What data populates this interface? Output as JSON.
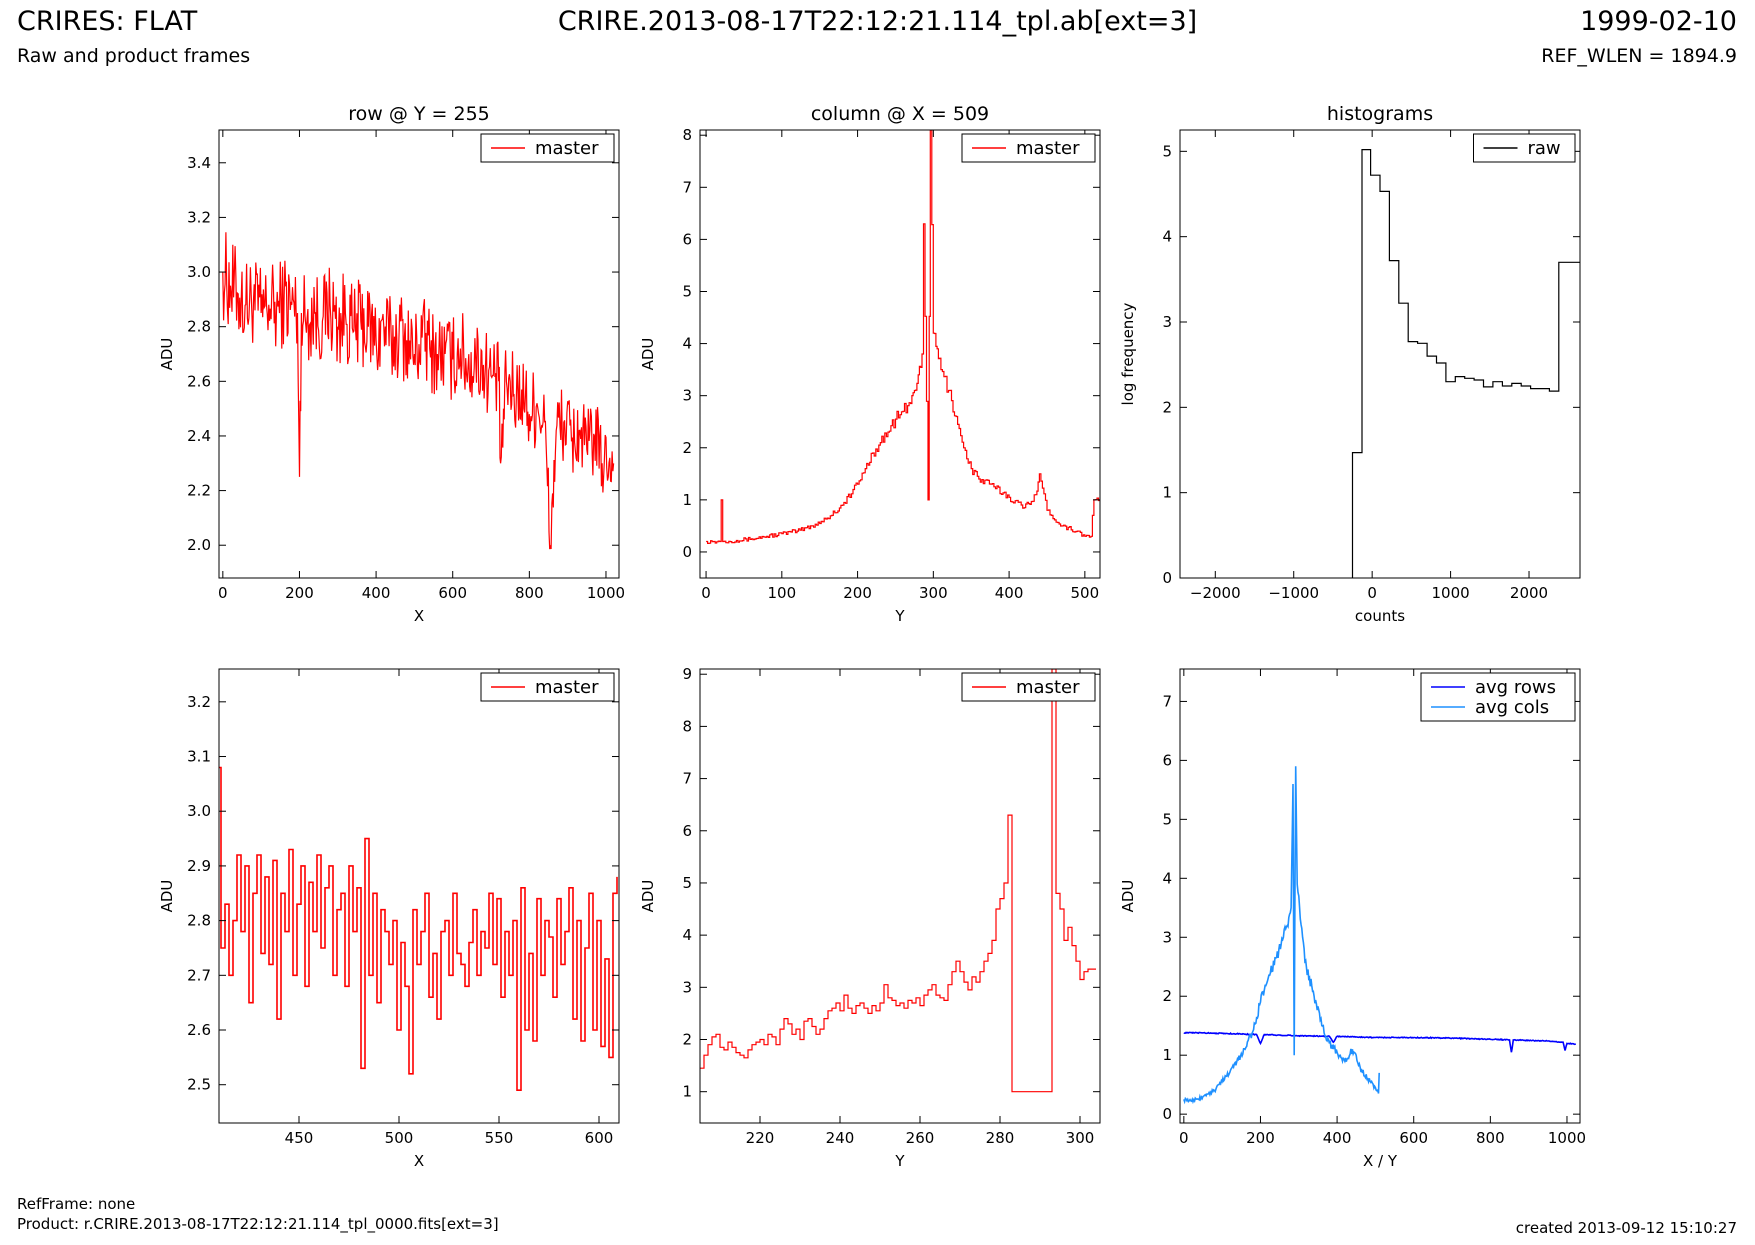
{
  "header": {
    "title": "CRIRES: FLAT",
    "subtitle": "Raw and product frames",
    "filename": "CRIRE.2013-08-17T22:12:21.114_tpl.ab[ext=3]",
    "date": "1999-02-10",
    "ref_wlen": "REF_WLEN = 1894.9"
  },
  "footer": {
    "refframe": "RefFrame: none",
    "product": "Product: r.CRIRE.2013-08-17T22:12:21.114_tpl_0000.fits[ext=3]",
    "created": "created 2013-09-12 15:10:27"
  },
  "colors": {
    "master": "#ff0000",
    "raw": "#000000",
    "avg_rows": "#0000ff",
    "avg_cols": "#1e90ff"
  },
  "chart_data": [
    {
      "id": "row-full",
      "type": "line",
      "title": "row @ Y = 255",
      "xlabel": "X",
      "ylabel": "ADU",
      "xlim": [
        -10,
        1034
      ],
      "ylim": [
        1.88,
        3.52
      ],
      "xticks": [
        0,
        200,
        400,
        600,
        800,
        1000
      ],
      "yticks": [
        2.0,
        2.2,
        2.4,
        2.6,
        2.8,
        3.0,
        3.2,
        3.4
      ],
      "ytick_decimals": 1,
      "legend_loc": "top-right",
      "series": [
        {
          "name": "master",
          "color": "#ff0000",
          "step": false,
          "x": [
            0,
            20,
            40,
            60,
            80,
            100,
            120,
            140,
            160,
            180,
            195,
            200,
            205,
            220,
            240,
            260,
            280,
            300,
            320,
            340,
            360,
            380,
            400,
            420,
            440,
            460,
            480,
            500,
            520,
            540,
            560,
            580,
            600,
            620,
            640,
            660,
            680,
            700,
            720,
            725,
            740,
            760,
            780,
            800,
            820,
            840,
            855,
            870,
            890,
            910,
            930,
            950,
            970,
            990,
            1010,
            1020
          ],
          "y": [
            3.0,
            2.95,
            2.92,
            2.88,
            2.9,
            2.85,
            2.88,
            2.86,
            2.9,
            2.88,
            2.85,
            2.25,
            2.85,
            2.83,
            2.85,
            2.82,
            2.88,
            2.8,
            2.85,
            2.78,
            2.82,
            2.8,
            2.75,
            2.8,
            2.74,
            2.78,
            2.75,
            2.7,
            2.76,
            2.72,
            2.7,
            2.7,
            2.68,
            2.72,
            2.65,
            2.68,
            2.66,
            2.62,
            2.6,
            2.3,
            2.6,
            2.55,
            2.57,
            2.48,
            2.52,
            2.45,
            2.0,
            2.42,
            2.45,
            2.38,
            2.42,
            2.35,
            2.4,
            2.3,
            2.32,
            2.3
          ],
          "noise": 0.13
        }
      ]
    },
    {
      "id": "col-full",
      "type": "line",
      "title": "column @ X = 509",
      "xlabel": "Y",
      "ylabel": "ADU",
      "xlim": [
        -8,
        520
      ],
      "ylim": [
        -0.5,
        8.1
      ],
      "xticks": [
        0,
        100,
        200,
        300,
        400,
        500
      ],
      "yticks": [
        0,
        1,
        2,
        3,
        4,
        5,
        6,
        7,
        8
      ],
      "ytick_decimals": 0,
      "legend_loc": "top-right",
      "series": [
        {
          "name": "master",
          "color": "#ff0000",
          "step": true,
          "x": [
            0,
            10,
            18,
            20,
            22,
            40,
            60,
            80,
            100,
            120,
            140,
            160,
            180,
            200,
            210,
            220,
            230,
            240,
            250,
            260,
            270,
            275,
            280,
            285,
            287,
            293,
            296,
            300,
            305,
            310,
            320,
            330,
            340,
            350,
            360,
            380,
            400,
            420,
            435,
            440,
            450,
            470,
            490,
            500,
            508,
            512,
            520
          ],
          "y": [
            0.2,
            0.2,
            0.2,
            1.0,
            0.2,
            0.22,
            0.25,
            0.3,
            0.35,
            0.4,
            0.5,
            0.65,
            0.9,
            1.3,
            1.6,
            1.9,
            2.1,
            2.3,
            2.55,
            2.7,
            2.85,
            3.1,
            3.4,
            3.8,
            6.3,
            1.0,
            8.1,
            4.2,
            3.9,
            3.5,
            3.1,
            2.6,
            2.0,
            1.6,
            1.4,
            1.25,
            1.05,
            0.85,
            1.1,
            1.5,
            0.8,
            0.5,
            0.4,
            0.3,
            0.3,
            1.0,
            1.0
          ],
          "noise": 0.1
        }
      ]
    },
    {
      "id": "histogram",
      "type": "line",
      "title": "histograms",
      "xlabel": "counts",
      "ylabel": "log frequency",
      "xlim": [
        -2450,
        2650
      ],
      "ylim": [
        0,
        5.25
      ],
      "xticks": [
        -2000,
        -1000,
        0,
        1000,
        2000
      ],
      "yticks": [
        0,
        1,
        2,
        3,
        4,
        5
      ],
      "ytick_decimals": 0,
      "legend_loc": "top-right",
      "series": [
        {
          "name": "raw",
          "color": "#000000",
          "step": true,
          "x": [
            -250,
            -250,
            -130,
            -130,
            -20,
            -20,
            100,
            100,
            220,
            220,
            340,
            340,
            460,
            460,
            580,
            580,
            700,
            700,
            820,
            820,
            940,
            940,
            1060,
            1060,
            1180,
            1180,
            1300,
            1300,
            1420,
            1420,
            1540,
            1540,
            1660,
            1660,
            1780,
            1780,
            1900,
            1900,
            2020,
            2020,
            2140,
            2140,
            2260,
            2260,
            2380,
            2380,
            2500,
            2500,
            2650
          ],
          "y": [
            0,
            1.47,
            1.47,
            5.02,
            5.02,
            4.72,
            4.72,
            4.53,
            4.53,
            3.72,
            3.72,
            3.22,
            3.22,
            2.77,
            2.77,
            2.75,
            2.75,
            2.6,
            2.6,
            2.52,
            2.52,
            2.3,
            2.3,
            2.36,
            2.36,
            2.34,
            2.34,
            2.32,
            2.32,
            2.24,
            2.24,
            2.3,
            2.3,
            2.25,
            2.25,
            2.28,
            2.28,
            2.25,
            2.25,
            2.22,
            2.22,
            2.22,
            2.22,
            2.19,
            2.19,
            3.7,
            3.7,
            3.7,
            3.7
          ],
          "noise": 0
        }
      ]
    },
    {
      "id": "row-zoom",
      "type": "line",
      "title": "",
      "xlabel": "X",
      "ylabel": "ADU",
      "xlim": [
        410,
        610
      ],
      "ylim": [
        2.43,
        3.26
      ],
      "xticks": [
        450,
        500,
        550,
        600
      ],
      "yticks": [
        2.5,
        2.6,
        2.7,
        2.8,
        2.9,
        3.0,
        3.1,
        3.2
      ],
      "ytick_decimals": 1,
      "legend_loc": "top-right",
      "series": [
        {
          "name": "master",
          "color": "#ff0000",
          "step": true,
          "x": [
            410,
            411,
            413,
            415,
            417,
            419,
            421,
            423,
            425,
            427,
            429,
            431,
            433,
            435,
            437,
            439,
            441,
            443,
            445,
            447,
            449,
            451,
            453,
            455,
            457,
            459,
            461,
            463,
            465,
            467,
            469,
            471,
            473,
            475,
            477,
            479,
            481,
            483,
            485,
            487,
            489,
            491,
            493,
            495,
            497,
            499,
            501,
            503,
            505,
            507,
            509,
            511,
            513,
            515,
            517,
            519,
            521,
            523,
            525,
            527,
            529,
            531,
            533,
            535,
            537,
            539,
            541,
            543,
            545,
            547,
            549,
            551,
            553,
            555,
            557,
            559,
            561,
            563,
            565,
            567,
            569,
            571,
            573,
            575,
            577,
            579,
            581,
            583,
            585,
            587,
            589,
            591,
            593,
            595,
            597,
            599,
            601,
            603,
            605,
            607,
            609
          ],
          "y": [
            3.08,
            2.75,
            2.83,
            2.7,
            2.8,
            2.92,
            2.78,
            2.9,
            2.65,
            2.85,
            2.92,
            2.74,
            2.88,
            2.72,
            2.91,
            2.62,
            2.85,
            2.78,
            2.93,
            2.7,
            2.83,
            2.9,
            2.68,
            2.87,
            2.78,
            2.92,
            2.75,
            2.86,
            2.9,
            2.7,
            2.82,
            2.85,
            2.68,
            2.9,
            2.78,
            2.86,
            2.53,
            2.95,
            2.7,
            2.85,
            2.65,
            2.82,
            2.78,
            2.72,
            2.8,
            2.6,
            2.76,
            2.68,
            2.52,
            2.82,
            2.72,
            2.78,
            2.85,
            2.66,
            2.74,
            2.62,
            2.78,
            2.8,
            2.7,
            2.85,
            2.74,
            2.72,
            2.68,
            2.76,
            2.82,
            2.7,
            2.78,
            2.75,
            2.85,
            2.72,
            2.84,
            2.66,
            2.78,
            2.7,
            2.8,
            2.49,
            2.86,
            2.6,
            2.74,
            2.58,
            2.84,
            2.7,
            2.8,
            2.77,
            2.66,
            2.84,
            2.72,
            2.78,
            2.86,
            2.62,
            2.8,
            2.58,
            2.75,
            2.85,
            2.6,
            2.8,
            2.57,
            2.73,
            2.55,
            2.85,
            2.88
          ],
          "noise": 0
        }
      ]
    },
    {
      "id": "col-zoom",
      "type": "line",
      "title": "",
      "xlabel": "Y",
      "ylabel": "ADU",
      "xlim": [
        205,
        305
      ],
      "ylim": [
        0.4,
        9.1
      ],
      "xticks": [
        220,
        240,
        260,
        280,
        300
      ],
      "yticks": [
        1,
        2,
        3,
        4,
        5,
        6,
        7,
        8,
        9
      ],
      "ytick_decimals": 0,
      "legend_loc": "top-right",
      "series": [
        {
          "name": "master",
          "color": "#ff0000",
          "step": true,
          "x": [
            205,
            206,
            207,
            208,
            209,
            210,
            211,
            212,
            213,
            214,
            215,
            216,
            217,
            218,
            219,
            220,
            221,
            222,
            223,
            224,
            225,
            226,
            227,
            228,
            229,
            230,
            231,
            232,
            233,
            234,
            235,
            236,
            237,
            238,
            239,
            240,
            241,
            242,
            243,
            244,
            245,
            246,
            247,
            248,
            249,
            250,
            251,
            252,
            253,
            254,
            255,
            256,
            257,
            258,
            259,
            260,
            261,
            262,
            263,
            264,
            265,
            266,
            267,
            268,
            269,
            270,
            271,
            272,
            273,
            274,
            275,
            276,
            277,
            278,
            279,
            280,
            281,
            282,
            283,
            284,
            285,
            286,
            287,
            288,
            289,
            290,
            291,
            292,
            293,
            294,
            295,
            296,
            297,
            298,
            299,
            300,
            301,
            302,
            303,
            304
          ],
          "y": [
            1.45,
            1.7,
            1.9,
            2.05,
            2.1,
            1.85,
            1.8,
            1.95,
            1.85,
            1.75,
            1.7,
            1.65,
            1.8,
            1.9,
            1.95,
            2.0,
            1.9,
            2.1,
            2.05,
            1.9,
            2.2,
            2.4,
            2.3,
            2.1,
            2.2,
            2.0,
            2.35,
            2.4,
            2.25,
            2.1,
            2.2,
            2.4,
            2.55,
            2.6,
            2.7,
            2.55,
            2.85,
            2.6,
            2.5,
            2.65,
            2.7,
            2.6,
            2.5,
            2.65,
            2.55,
            2.7,
            3.05,
            2.8,
            2.75,
            2.65,
            2.7,
            2.6,
            2.75,
            2.7,
            2.8,
            2.65,
            2.85,
            2.95,
            3.05,
            2.85,
            2.8,
            2.75,
            3.05,
            3.3,
            3.5,
            3.3,
            3.1,
            2.95,
            3.2,
            3.1,
            3.3,
            3.5,
            3.65,
            3.9,
            4.5,
            4.7,
            5.0,
            6.3,
            1.0,
            1.0,
            1.0,
            1.0,
            1.0,
            1.0,
            1.0,
            1.0,
            1.0,
            1.0,
            9.1,
            4.8,
            4.5,
            3.9,
            4.15,
            3.8,
            3.5,
            3.15,
            3.3,
            3.35,
            3.35,
            3.35
          ],
          "noise": 0
        }
      ]
    },
    {
      "id": "averages",
      "type": "line",
      "title": "",
      "xlabel": "X / Y",
      "ylabel": "ADU",
      "xlim": [
        -10,
        1034
      ],
      "ylim": [
        -0.15,
        7.55
      ],
      "xticks": [
        0,
        200,
        400,
        600,
        800,
        1000
      ],
      "yticks": [
        0,
        1,
        2,
        3,
        4,
        5,
        6,
        7
      ],
      "ytick_decimals": 0,
      "legend_loc": "top-right",
      "series": [
        {
          "name": "avg rows",
          "color": "#0000ff",
          "step": false,
          "x": [
            0,
            50,
            100,
            150,
            190,
            200,
            210,
            250,
            300,
            380,
            390,
            400,
            450,
            500,
            600,
            700,
            800,
            850,
            855,
            860,
            900,
            950,
            990,
            995,
            1000,
            1023
          ],
          "y": [
            1.38,
            1.38,
            1.37,
            1.36,
            1.35,
            1.2,
            1.35,
            1.34,
            1.33,
            1.32,
            1.22,
            1.32,
            1.31,
            1.3,
            1.3,
            1.29,
            1.27,
            1.26,
            1.05,
            1.26,
            1.25,
            1.24,
            1.22,
            1.08,
            1.2,
            1.19
          ],
          "noise": 0.01
        },
        {
          "name": "avg cols",
          "color": "#1e90ff",
          "step": false,
          "x": [
            0,
            20,
            50,
            80,
            100,
            130,
            160,
            180,
            200,
            210,
            220,
            240,
            260,
            270,
            280,
            285,
            288,
            292,
            296,
            300,
            310,
            320,
            340,
            360,
            380,
            400,
            420,
            440,
            460,
            480,
            500,
            508,
            510
          ],
          "y": [
            0.25,
            0.22,
            0.3,
            0.4,
            0.55,
            0.8,
            1.1,
            1.4,
            1.9,
            2.1,
            2.3,
            2.65,
            3.0,
            3.2,
            3.5,
            5.6,
            1.0,
            5.9,
            3.9,
            3.7,
            3.0,
            2.5,
            2.0,
            1.5,
            1.2,
            1.05,
            0.9,
            1.1,
            0.8,
            0.6,
            0.45,
            0.35,
            0.7
          ],
          "noise": 0.09
        }
      ]
    }
  ]
}
